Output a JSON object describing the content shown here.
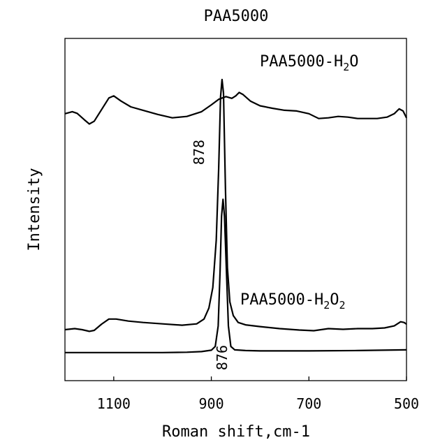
{
  "chart_data": {
    "type": "line",
    "title": "PAA5000",
    "xlabel": "Roman shift,cm-1",
    "ylabel": "Intensity",
    "x_reversed": true,
    "xlim": [
      1200,
      500
    ],
    "x_ticks": [
      1100,
      900,
      700,
      500
    ],
    "y_ticks": [],
    "grid": false,
    "legend": "none",
    "series": [
      {
        "name": "PAA5000-H2O",
        "label_main": "PAA5000-H",
        "label_sub": "2",
        "label_tail": "O",
        "color": "#000000",
        "points": [
          [
            1200,
            0.78
          ],
          [
            1185,
            0.786
          ],
          [
            1175,
            0.781
          ],
          [
            1160,
            0.762
          ],
          [
            1150,
            0.75
          ],
          [
            1140,
            0.758
          ],
          [
            1125,
            0.792
          ],
          [
            1110,
            0.826
          ],
          [
            1100,
            0.832
          ],
          [
            1085,
            0.817
          ],
          [
            1065,
            0.8
          ],
          [
            1040,
            0.79
          ],
          [
            1010,
            0.778
          ],
          [
            980,
            0.768
          ],
          [
            950,
            0.772
          ],
          [
            920,
            0.786
          ],
          [
            900,
            0.806
          ],
          [
            885,
            0.822
          ],
          [
            870,
            0.83
          ],
          [
            858,
            0.825
          ],
          [
            850,
            0.832
          ],
          [
            843,
            0.842
          ],
          [
            835,
            0.836
          ],
          [
            820,
            0.817
          ],
          [
            800,
            0.803
          ],
          [
            775,
            0.796
          ],
          [
            750,
            0.79
          ],
          [
            725,
            0.788
          ],
          [
            700,
            0.78
          ],
          [
            680,
            0.766
          ],
          [
            660,
            0.768
          ],
          [
            640,
            0.772
          ],
          [
            620,
            0.77
          ],
          [
            600,
            0.766
          ],
          [
            580,
            0.766
          ],
          [
            560,
            0.766
          ],
          [
            540,
            0.77
          ],
          [
            525,
            0.78
          ],
          [
            515,
            0.794
          ],
          [
            507,
            0.788
          ],
          [
            500,
            0.768
          ]
        ]
      },
      {
        "name": "PAA5000-H2O2",
        "label_main": "PAA5000-H",
        "label_sub": "2",
        "label_tail": "O",
        "label_sub2": "2",
        "color": "#000000",
        "points": [
          [
            1200,
            0.149
          ],
          [
            1180,
            0.152
          ],
          [
            1165,
            0.149
          ],
          [
            1150,
            0.144
          ],
          [
            1140,
            0.147
          ],
          [
            1125,
            0.165
          ],
          [
            1110,
            0.18
          ],
          [
            1095,
            0.18
          ],
          [
            1070,
            0.174
          ],
          [
            1040,
            0.17
          ],
          [
            1000,
            0.166
          ],
          [
            960,
            0.162
          ],
          [
            930,
            0.166
          ],
          [
            915,
            0.18
          ],
          [
            905,
            0.212
          ],
          [
            897,
            0.272
          ],
          [
            890,
            0.41
          ],
          [
            885,
            0.62
          ],
          [
            881,
            0.83
          ],
          [
            878,
            0.88
          ],
          [
            875,
            0.84
          ],
          [
            871,
            0.56
          ],
          [
            867,
            0.33
          ],
          [
            862,
            0.23
          ],
          [
            855,
            0.19
          ],
          [
            845,
            0.17
          ],
          [
            830,
            0.163
          ],
          [
            800,
            0.158
          ],
          [
            760,
            0.152
          ],
          [
            720,
            0.148
          ],
          [
            690,
            0.146
          ],
          [
            660,
            0.152
          ],
          [
            630,
            0.15
          ],
          [
            600,
            0.152
          ],
          [
            570,
            0.152
          ],
          [
            545,
            0.154
          ],
          [
            525,
            0.16
          ],
          [
            512,
            0.172
          ],
          [
            505,
            0.17
          ],
          [
            500,
            0.165
          ]
        ]
      },
      {
        "name": "",
        "color": "#000000",
        "points": [
          [
            1200,
            0.082
          ],
          [
            1100,
            0.082
          ],
          [
            1000,
            0.082
          ],
          [
            950,
            0.083
          ],
          [
            920,
            0.085
          ],
          [
            900,
            0.089
          ],
          [
            892,
            0.1
          ],
          [
            886,
            0.16
          ],
          [
            882,
            0.32
          ],
          [
            879,
            0.48
          ],
          [
            876,
            0.53
          ],
          [
            873,
            0.48
          ],
          [
            869,
            0.32
          ],
          [
            865,
            0.16
          ],
          [
            860,
            0.1
          ],
          [
            852,
            0.09
          ],
          [
            830,
            0.088
          ],
          [
            800,
            0.087
          ],
          [
            700,
            0.087
          ],
          [
            600,
            0.088
          ],
          [
            500,
            0.09
          ]
        ]
      }
    ],
    "annotations": [
      {
        "text": "878"
      },
      {
        "text": "876"
      }
    ]
  }
}
